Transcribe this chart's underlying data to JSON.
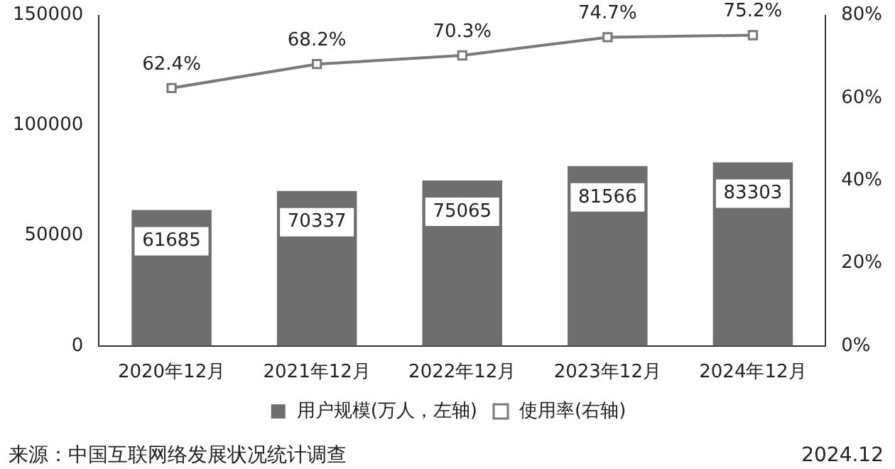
{
  "chart_data": {
    "type": "bar",
    "categories": [
      "2020年12月",
      "2021年12月",
      "2022年12月",
      "2023年12月",
      "2024年12月"
    ],
    "series": [
      {
        "name": "用户规模(万人，左轴)",
        "color": "#6e6e6e",
        "values": [
          61685,
          70337,
          75065,
          81566,
          83303
        ],
        "value_labels": [
          "61685",
          "70337",
          "75065",
          "81566",
          "83303"
        ]
      },
      {
        "name": "使用率(右轴)",
        "type": "line",
        "axis": "y2",
        "color": "#7a7a7a",
        "values": [
          62.4,
          68.2,
          70.3,
          74.7,
          75.2
        ],
        "value_labels": [
          "62.4%",
          "68.2%",
          "70.3%",
          "74.7%",
          "75.2%"
        ]
      }
    ],
    "ylim": [
      0,
      150000
    ],
    "yticks": [
      0,
      50000,
      100000,
      150000
    ],
    "y2lim": [
      0,
      80
    ],
    "y2ticks": [
      {
        "value": 0,
        "label": "0%"
      },
      {
        "value": 20,
        "label": "20%"
      },
      {
        "value": 40,
        "label": "40%"
      },
      {
        "value": 60,
        "label": "60%"
      },
      {
        "value": 80,
        "label": "80%"
      }
    ],
    "marker": "square",
    "legend": "bottom",
    "grid": false,
    "annotations": [
      "来源：中国互联网络发展状况统计调查",
      "2024.12"
    ]
  }
}
